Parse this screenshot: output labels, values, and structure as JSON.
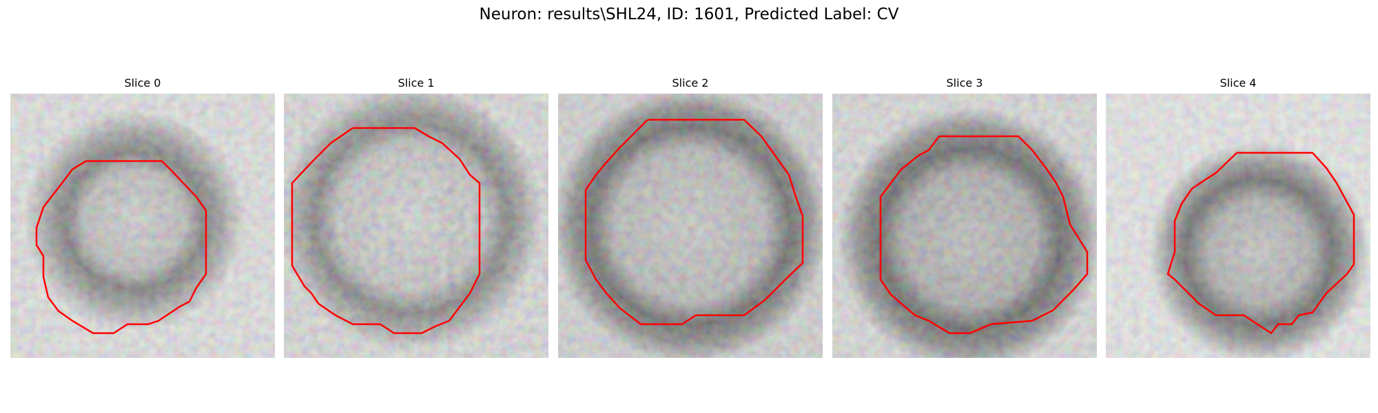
{
  "figure": {
    "title": "Neuron: results\\SHL24, ID: 1601, Predicted Label: CV",
    "contour_color": "#ff0000"
  },
  "slices": [
    {
      "label": "Slice 0"
    },
    {
      "label": "Slice 1"
    },
    {
      "label": "Slice 2"
    },
    {
      "label": "Slice 3"
    },
    {
      "label": "Slice 4"
    }
  ]
}
